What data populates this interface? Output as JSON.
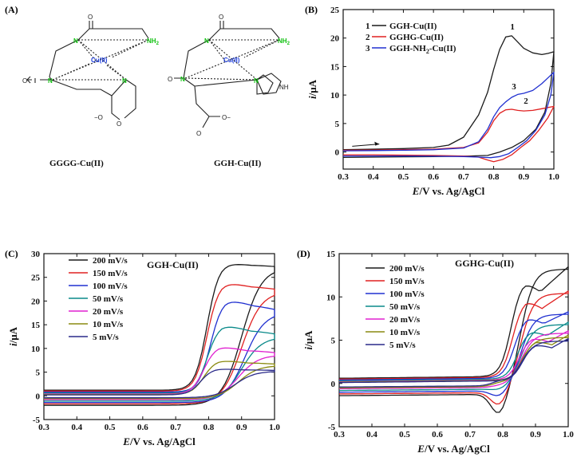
{
  "panels": {
    "A": {
      "label": "(A)",
      "mol1_name": "GGGG-Cu(II)",
      "mol2_name": "GGH-Cu(II)",
      "center": "Cu(II)",
      "n": "N",
      "nh2": "NH",
      "nh2_sub": "2",
      "nh": "NH",
      "o": "O",
      "o_minus": "O",
      "minus": "−"
    },
    "B": {
      "label": "(B)"
    },
    "C": {
      "label": "(C)"
    },
    "D": {
      "label": "(D)"
    }
  },
  "chart_data": [
    {
      "id": "B",
      "type": "line",
      "title": "",
      "xlabel_italic": "E",
      "xlabel_rest": "/V vs. Ag/AgCl",
      "ylabel_italic": "i",
      "ylabel_rest": "/μA",
      "xlim": [
        0.3,
        1.0
      ],
      "ylim": [
        -3,
        25
      ],
      "xticks": [
        "0.3",
        "0.4",
        "0.5",
        "0.6",
        "0.7",
        "0.8",
        "0.9",
        "1.0"
      ],
      "yticks": [
        "0",
        "5",
        "10",
        "15",
        "20",
        "25"
      ],
      "legend_position": "top-left",
      "series": [
        {
          "name": "GGH-Cu(II)",
          "number": "1",
          "color": "#1a1a1a",
          "forward": [
            [
              0.3,
              0.4
            ],
            [
              0.4,
              0.5
            ],
            [
              0.5,
              0.6
            ],
            [
              0.6,
              0.8
            ],
            [
              0.65,
              1.2
            ],
            [
              0.7,
              2.6
            ],
            [
              0.75,
              6.5
            ],
            [
              0.78,
              10.5
            ],
            [
              0.8,
              14.5
            ],
            [
              0.82,
              18.0
            ],
            [
              0.84,
              20.2
            ],
            [
              0.86,
              20.4
            ],
            [
              0.88,
              19.3
            ],
            [
              0.9,
              18.2
            ],
            [
              0.93,
              17.4
            ],
            [
              0.96,
              17.1
            ],
            [
              0.98,
              17.3
            ],
            [
              1.0,
              17.6
            ]
          ],
          "reverse": [
            [
              1.0,
              17.6
            ],
            [
              0.99,
              12.0
            ],
            [
              0.97,
              7.0
            ],
            [
              0.94,
              4.0
            ],
            [
              0.9,
              2.0
            ],
            [
              0.86,
              0.8
            ],
            [
              0.82,
              0.0
            ],
            [
              0.78,
              -0.6
            ],
            [
              0.72,
              -0.7
            ],
            [
              0.6,
              -0.8
            ],
            [
              0.5,
              -0.85
            ],
            [
              0.4,
              -0.9
            ],
            [
              0.3,
              -0.95
            ]
          ]
        },
        {
          "name": "GGHG-Cu(II)",
          "number": "2",
          "color": "#e02020",
          "forward": [
            [
              0.3,
              0.3
            ],
            [
              0.4,
              0.35
            ],
            [
              0.5,
              0.4
            ],
            [
              0.6,
              0.5
            ],
            [
              0.7,
              0.8
            ],
            [
              0.75,
              1.6
            ],
            [
              0.78,
              3.5
            ],
            [
              0.8,
              5.5
            ],
            [
              0.82,
              6.8
            ],
            [
              0.84,
              7.4
            ],
            [
              0.86,
              7.5
            ],
            [
              0.88,
              7.3
            ],
            [
              0.9,
              7.2
            ],
            [
              0.93,
              7.3
            ],
            [
              0.96,
              7.6
            ],
            [
              1.0,
              8.0
            ]
          ],
          "reverse": [
            [
              1.0,
              8.0
            ],
            [
              0.98,
              6.0
            ],
            [
              0.95,
              3.8
            ],
            [
              0.92,
              2.0
            ],
            [
              0.89,
              0.8
            ],
            [
              0.86,
              -0.5
            ],
            [
              0.83,
              -1.3
            ],
            [
              0.8,
              -1.7
            ],
            [
              0.78,
              -1.4
            ],
            [
              0.75,
              -0.9
            ],
            [
              0.7,
              -0.7
            ],
            [
              0.6,
              -0.6
            ],
            [
              0.5,
              -0.55
            ],
            [
              0.4,
              -0.5
            ],
            [
              0.3,
              -0.5
            ]
          ]
        },
        {
          "name": "GGH-NH₂-Cu(II)",
          "name_main": "GGH-NH",
          "name_sub": "2",
          "name_tail": "-Cu(II)",
          "number": "3",
          "color": "#2030d0",
          "forward": [
            [
              0.3,
              0.2
            ],
            [
              0.4,
              0.25
            ],
            [
              0.5,
              0.3
            ],
            [
              0.6,
              0.4
            ],
            [
              0.7,
              0.7
            ],
            [
              0.75,
              1.8
            ],
            [
              0.78,
              4.0
            ],
            [
              0.8,
              6.2
            ],
            [
              0.82,
              7.8
            ],
            [
              0.84,
              8.8
            ],
            [
              0.86,
              9.6
            ],
            [
              0.88,
              10.1
            ],
            [
              0.9,
              10.3
            ],
            [
              0.93,
              10.8
            ],
            [
              0.96,
              12.0
            ],
            [
              0.98,
              13.0
            ],
            [
              1.0,
              14.0
            ]
          ],
          "reverse": [
            [
              1.0,
              14.0
            ],
            [
              0.99,
              10.0
            ],
            [
              0.97,
              6.5
            ],
            [
              0.94,
              3.8
            ],
            [
              0.91,
              2.0
            ],
            [
              0.88,
              0.8
            ],
            [
              0.85,
              -0.3
            ],
            [
              0.82,
              -0.8
            ],
            [
              0.79,
              -1.0
            ],
            [
              0.75,
              -0.9
            ],
            [
              0.7,
              -0.8
            ],
            [
              0.6,
              -0.75
            ],
            [
              0.5,
              -0.7
            ],
            [
              0.4,
              -0.7
            ],
            [
              0.3,
              -0.7
            ]
          ]
        }
      ]
    },
    {
      "id": "C",
      "type": "line",
      "title": "GGH-Cu(II)",
      "xlabel_italic": "E",
      "xlabel_rest": "/V vs. Ag/AgCl",
      "ylabel_italic": "i",
      "ylabel_rest": "/μA",
      "xlim": [
        0.3,
        1.0
      ],
      "ylim": [
        -5,
        30
      ],
      "xticks": [
        "0.3",
        "0.4",
        "0.5",
        "0.6",
        "0.7",
        "0.8",
        "0.9",
        "1.0"
      ],
      "yticks": [
        "-5",
        "0",
        "5",
        "10",
        "15",
        "20",
        "25",
        "30"
      ],
      "legend_position": "top-left",
      "peak_shape": "C",
      "series": [
        {
          "name": "200 mV/s",
          "color": "#1a1a1a",
          "peak": 28.2,
          "end": 27.0,
          "base": 1.2,
          "rbase": -2.0,
          "ep": 0.84
        },
        {
          "name": "150 mV/s",
          "color": "#e02020",
          "peak": 24.2,
          "end": 22.0,
          "base": 1.0,
          "rbase": -1.7,
          "ep": 0.84
        },
        {
          "name": "100 mV/s",
          "color": "#2030d0",
          "peak": 20.6,
          "end": 17.6,
          "base": 0.8,
          "rbase": -1.4,
          "ep": 0.85
        },
        {
          "name": "50 mV/s",
          "color": "#0a8a8a",
          "peak": 15.2,
          "end": 12.4,
          "base": 0.6,
          "rbase": -1.1,
          "ep": 0.84
        },
        {
          "name": "20 mV/s",
          "color": "#e020d0",
          "peak": 10.6,
          "end": 8.6,
          "base": 0.4,
          "rbase": -0.8,
          "ep": 0.83
        },
        {
          "name": "10 mV/s",
          "color": "#8a8a10",
          "peak": 7.6,
          "end": 6.4,
          "base": 0.3,
          "rbase": -0.6,
          "ep": 0.83
        },
        {
          "name": "5 mV/s",
          "color": "#2a2a8a",
          "peak": 5.8,
          "end": 5.2,
          "base": 0.2,
          "rbase": -0.4,
          "ep": 0.82
        }
      ]
    },
    {
      "id": "D",
      "type": "line",
      "title": "GGHG-Cu(II)",
      "xlabel_italic": "E",
      "xlabel_rest": "/V vs. Ag/AgCl",
      "ylabel_italic": "i",
      "ylabel_rest": "/μA",
      "xlim": [
        0.3,
        1.0
      ],
      "ylim": [
        -5,
        15
      ],
      "xticks": [
        "0.3",
        "0.4",
        "0.5",
        "0.6",
        "0.7",
        "0.8",
        "0.9",
        "1.0"
      ],
      "yticks": [
        "-5",
        "0",
        "5",
        "10",
        "15"
      ],
      "legend_position": "top-left",
      "peak_shape": "D",
      "series": [
        {
          "name": "200 mV/s",
          "color": "#1a1a1a",
          "peak": 11.8,
          "end": 13.2,
          "base": 0.6,
          "rbase": -1.2,
          "cpeak": -3.8,
          "ep": 0.865
        },
        {
          "name": "150 mV/s",
          "color": "#e02020",
          "peak": 9.6,
          "end": 10.4,
          "base": 0.5,
          "rbase": -1.0,
          "cpeak": -2.7,
          "ep": 0.87
        },
        {
          "name": "100 mV/s",
          "color": "#2030d0",
          "peak": 7.6,
          "end": 8.0,
          "base": 0.4,
          "rbase": -0.8,
          "cpeak": -1.6,
          "ep": 0.875
        },
        {
          "name": "50 mV/s",
          "color": "#0a8a8a",
          "peak": 6.0,
          "end": 6.8,
          "base": 0.3,
          "rbase": -0.6,
          "cpeak": -0.8,
          "ep": 0.885
        },
        {
          "name": "20 mV/s",
          "color": "#e020d0",
          "peak": 5.2,
          "end": 5.8,
          "base": 0.2,
          "rbase": -0.4,
          "cpeak": -0.3,
          "ep": 0.89
        },
        {
          "name": "10 mV/s",
          "color": "#8a8a10",
          "peak": 4.8,
          "end": 5.3,
          "base": 0.15,
          "rbase": -0.3,
          "cpeak": 0.0,
          "ep": 0.9
        },
        {
          "name": "5 mV/s",
          "color": "#2a2a8a",
          "peak": 4.4,
          "end": 4.9,
          "base": 0.1,
          "rbase": -0.2,
          "cpeak": 0.2,
          "ep": 0.9
        }
      ]
    }
  ]
}
